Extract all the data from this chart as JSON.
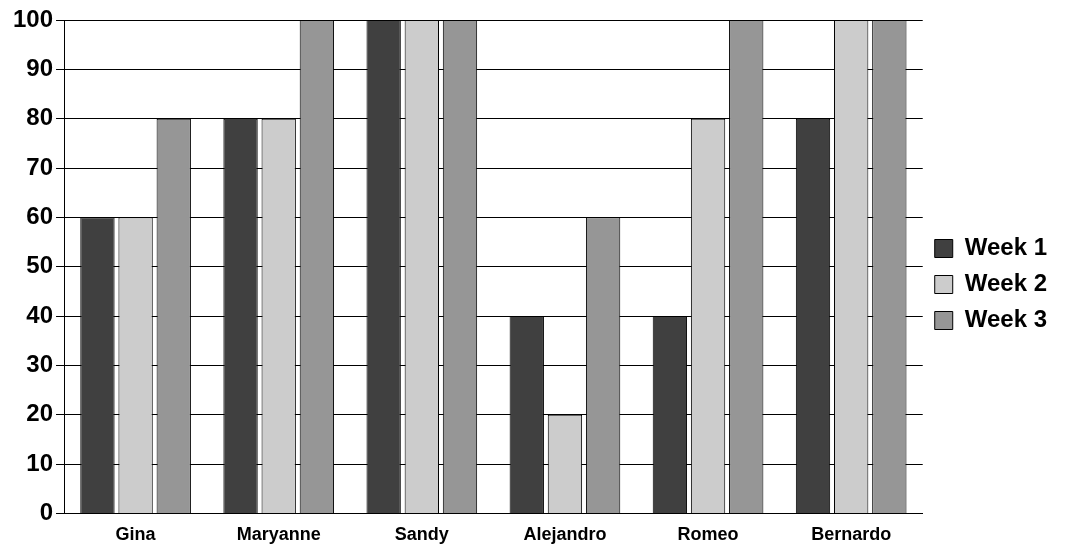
{
  "chart_data": {
    "type": "bar",
    "categories": [
      "Gina",
      "Maryanne",
      "Sandy",
      "Alejandro",
      "Romeo",
      "Bernardo"
    ],
    "series": [
      {
        "name": "Week 1",
        "color": "#404040",
        "values": [
          60,
          80,
          100,
          40,
          40,
          80
        ]
      },
      {
        "name": "Week 2",
        "color": "#cccccc",
        "values": [
          60,
          80,
          100,
          20,
          80,
          100
        ]
      },
      {
        "name": "Week 3",
        "color": "#969696",
        "values": [
          80,
          100,
          100,
          60,
          100,
          100
        ]
      }
    ],
    "ylim": [
      0,
      100
    ],
    "yticks": [
      0,
      10,
      20,
      30,
      40,
      50,
      60,
      70,
      80,
      90,
      100
    ],
    "grid": "y",
    "legend": "right"
  }
}
